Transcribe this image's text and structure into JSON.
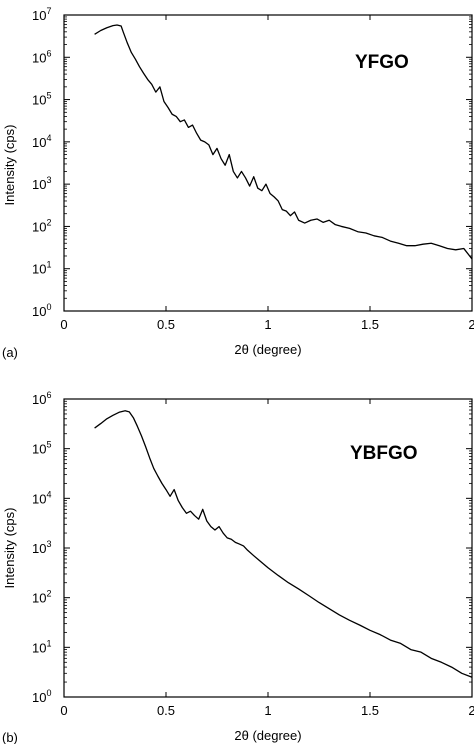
{
  "chart_data": [
    {
      "panel_label": "(a)",
      "type": "line",
      "sample_label": "YFGO",
      "xlabel": "2θ (degree)",
      "ylabel": "Intensity (cps)",
      "xlim": [
        0,
        2
      ],
      "ylim": [
        1,
        10000000
      ],
      "y_scale": "log",
      "x_ticks": [
        0,
        0.5,
        1,
        1.5,
        2
      ],
      "x_tick_labels": [
        "0",
        "0.5",
        "1",
        "1.5",
        "2"
      ],
      "y_ticks": [
        {
          "base": "10",
          "exp": "0",
          "value": 1
        },
        {
          "base": "10",
          "exp": "1",
          "value": 10
        },
        {
          "base": "10",
          "exp": "2",
          "value": 100
        },
        {
          "base": "10",
          "exp": "3",
          "value": 1000
        },
        {
          "base": "10",
          "exp": "4",
          "value": 10000
        },
        {
          "base": "10",
          "exp": "5",
          "value": 100000
        },
        {
          "base": "10",
          "exp": "6",
          "value": 1000000
        },
        {
          "base": "10",
          "exp": "7",
          "value": 10000000
        }
      ],
      "series": [
        {
          "x": [
            0.15,
            0.18,
            0.21,
            0.24,
            0.26,
            0.28,
            0.29,
            0.31,
            0.33,
            0.35,
            0.37,
            0.39,
            0.41,
            0.43,
            0.45,
            0.47,
            0.49,
            0.51,
            0.53,
            0.55,
            0.57,
            0.59,
            0.61,
            0.63,
            0.65,
            0.67,
            0.69,
            0.71,
            0.73,
            0.75,
            0.77,
            0.79,
            0.81,
            0.83,
            0.85,
            0.87,
            0.89,
            0.91,
            0.93,
            0.95,
            0.97,
            0.99,
            1.01,
            1.03,
            1.05,
            1.07,
            1.09,
            1.11,
            1.13,
            1.15,
            1.18,
            1.21,
            1.24,
            1.27,
            1.3,
            1.33,
            1.36,
            1.4,
            1.44,
            1.48,
            1.52,
            1.56,
            1.6,
            1.64,
            1.68,
            1.72,
            1.76,
            1.8,
            1.84,
            1.88,
            1.92,
            1.96,
            2.0
          ],
          "y": [
            3500000,
            4300000,
            5000000,
            5600000,
            5800000,
            5500000,
            4000000,
            2200000,
            1300000,
            900000,
            600000,
            420000,
            300000,
            230000,
            150000,
            200000,
            90000,
            65000,
            45000,
            40000,
            30000,
            33000,
            22000,
            25000,
            16000,
            11000,
            10000,
            8500,
            5000,
            7000,
            4000,
            2800,
            5000,
            2000,
            1400,
            2000,
            1400,
            900,
            1500,
            800,
            700,
            1000,
            600,
            500,
            400,
            250,
            230,
            180,
            220,
            140,
            120,
            140,
            150,
            125,
            140,
            110,
            100,
            90,
            75,
            70,
            60,
            55,
            45,
            40,
            35,
            35,
            38,
            40,
            35,
            30,
            28,
            30,
            17
          ]
        }
      ]
    },
    {
      "panel_label": "(b)",
      "type": "line",
      "sample_label": "YBFGO",
      "xlabel": "2θ (degree)",
      "ylabel": "Intensity (cps)",
      "xlim": [
        0,
        2
      ],
      "ylim": [
        1,
        1000000
      ],
      "y_scale": "log",
      "x_ticks": [
        0,
        0.5,
        1,
        1.5,
        2
      ],
      "x_tick_labels": [
        "0",
        "0.5",
        "1",
        "1.5",
        "2"
      ],
      "y_ticks": [
        {
          "base": "10",
          "exp": "0",
          "value": 1
        },
        {
          "base": "10",
          "exp": "1",
          "value": 10
        },
        {
          "base": "10",
          "exp": "2",
          "value": 100
        },
        {
          "base": "10",
          "exp": "3",
          "value": 1000
        },
        {
          "base": "10",
          "exp": "4",
          "value": 10000
        },
        {
          "base": "10",
          "exp": "5",
          "value": 100000
        },
        {
          "base": "10",
          "exp": "6",
          "value": 1000000
        }
      ],
      "series": [
        {
          "x": [
            0.15,
            0.18,
            0.21,
            0.24,
            0.27,
            0.3,
            0.32,
            0.34,
            0.36,
            0.38,
            0.4,
            0.42,
            0.44,
            0.46,
            0.48,
            0.5,
            0.52,
            0.54,
            0.56,
            0.58,
            0.6,
            0.62,
            0.64,
            0.66,
            0.68,
            0.7,
            0.72,
            0.74,
            0.76,
            0.78,
            0.8,
            0.82,
            0.84,
            0.86,
            0.88,
            0.9,
            0.93,
            0.96,
            1.0,
            1.05,
            1.1,
            1.15,
            1.2,
            1.25,
            1.3,
            1.35,
            1.4,
            1.45,
            1.5,
            1.55,
            1.6,
            1.65,
            1.7,
            1.75,
            1.8,
            1.85,
            1.9,
            1.95,
            2.0
          ],
          "y": [
            260000,
            320000,
            400000,
            470000,
            540000,
            580000,
            550000,
            420000,
            280000,
            180000,
            110000,
            65000,
            40000,
            28000,
            20000,
            15000,
            11000,
            15000,
            9000,
            6500,
            5000,
            5500,
            4500,
            3800,
            6000,
            3500,
            2700,
            2300,
            2700,
            2000,
            1600,
            1500,
            1300,
            1200,
            1100,
            900,
            700,
            550,
            400,
            280,
            200,
            150,
            110,
            80,
            60,
            45,
            35,
            28,
            22,
            18,
            14,
            12,
            9,
            8,
            6,
            5,
            4,
            3,
            2.5
          ]
        }
      ]
    }
  ]
}
